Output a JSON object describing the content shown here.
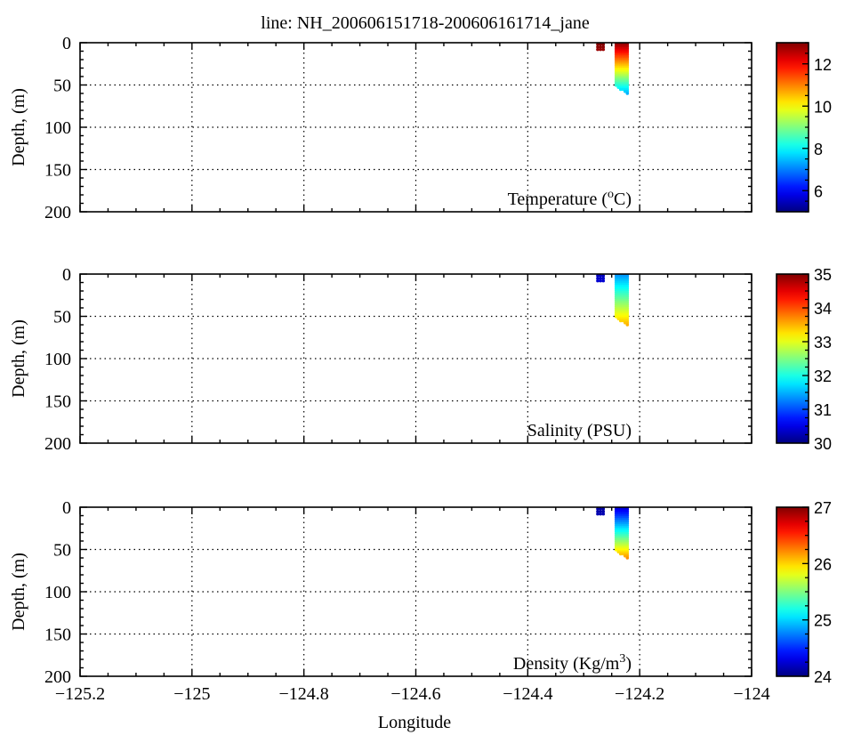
{
  "title": "line: NH_200606151718-200606161714_jane",
  "xlabel": "Longitude",
  "chart_data": [
    {
      "type": "scatter",
      "variable": "temperature",
      "label": "Temperature (",
      "label_sup": "o",
      "label_after": "C)",
      "ylabel": "Depth, (m)",
      "xlim": [
        -125.2,
        -124
      ],
      "ylim": [
        0,
        200
      ],
      "y_inverted": true,
      "x_ticks": [
        -125.2,
        -125,
        -124.8,
        -124.6,
        -124.4,
        -124.2,
        -124
      ],
      "y_ticks": [
        0,
        50,
        100,
        150,
        200
      ],
      "grid": true,
      "colorbar": {
        "min": 5,
        "max": 13,
        "ticks": [
          6,
          8,
          10,
          12
        ],
        "colormap": "jet"
      },
      "clusters": [
        {
          "x_range": [
            -124.275,
            -124.265
          ],
          "depth_range": [
            2,
            8
          ],
          "value_top": 13,
          "value_bottom": 12.8
        },
        {
          "x_range": [
            -124.242,
            -124.222
          ],
          "depth_range": [
            0,
            60
          ],
          "value_top": 13,
          "value_bottom": 7.4
        }
      ]
    },
    {
      "type": "scatter",
      "variable": "salinity",
      "label": "Salinity (PSU)",
      "ylabel": "Depth, (m)",
      "xlim": [
        -125.2,
        -124
      ],
      "ylim": [
        0,
        200
      ],
      "y_inverted": true,
      "x_ticks": [
        -125.2,
        -125,
        -124.8,
        -124.6,
        -124.4,
        -124.2,
        -124
      ],
      "y_ticks": [
        0,
        50,
        100,
        150,
        200
      ],
      "grid": true,
      "colorbar": {
        "min": 30,
        "max": 35,
        "ticks": [
          30,
          31,
          32,
          33,
          34,
          35
        ],
        "colormap": "jet"
      },
      "clusters": [
        {
          "x_range": [
            -124.275,
            -124.265
          ],
          "depth_range": [
            2,
            8
          ],
          "value_top": 30.3,
          "value_bottom": 30.4
        },
        {
          "x_range": [
            -124.242,
            -124.222
          ],
          "depth_range": [
            0,
            60
          ],
          "value_top": 31.3,
          "value_bottom": 33.5
        }
      ]
    },
    {
      "type": "scatter",
      "variable": "density",
      "label": "Density (Kg/m",
      "label_sup": "3",
      "label_after": ")",
      "ylabel": "Depth, (m)",
      "xlim": [
        -125.2,
        -124
      ],
      "ylim": [
        0,
        200
      ],
      "y_inverted": true,
      "x_ticks": [
        -125.2,
        -125,
        -124.8,
        -124.6,
        -124.4,
        -124.2,
        -124
      ],
      "y_ticks": [
        0,
        50,
        100,
        150,
        200
      ],
      "grid": true,
      "colorbar": {
        "min": 24,
        "max": 27,
        "ticks": [
          24,
          25,
          26,
          27
        ],
        "colormap": "jet"
      },
      "clusters": [
        {
          "x_range": [
            -124.275,
            -124.265
          ],
          "depth_range": [
            2,
            8
          ],
          "value_top": 24.1,
          "value_bottom": 24.15
        },
        {
          "x_range": [
            -124.242,
            -124.222
          ],
          "depth_range": [
            0,
            60
          ],
          "value_top": 24.2,
          "value_bottom": 26.2
        }
      ]
    }
  ]
}
